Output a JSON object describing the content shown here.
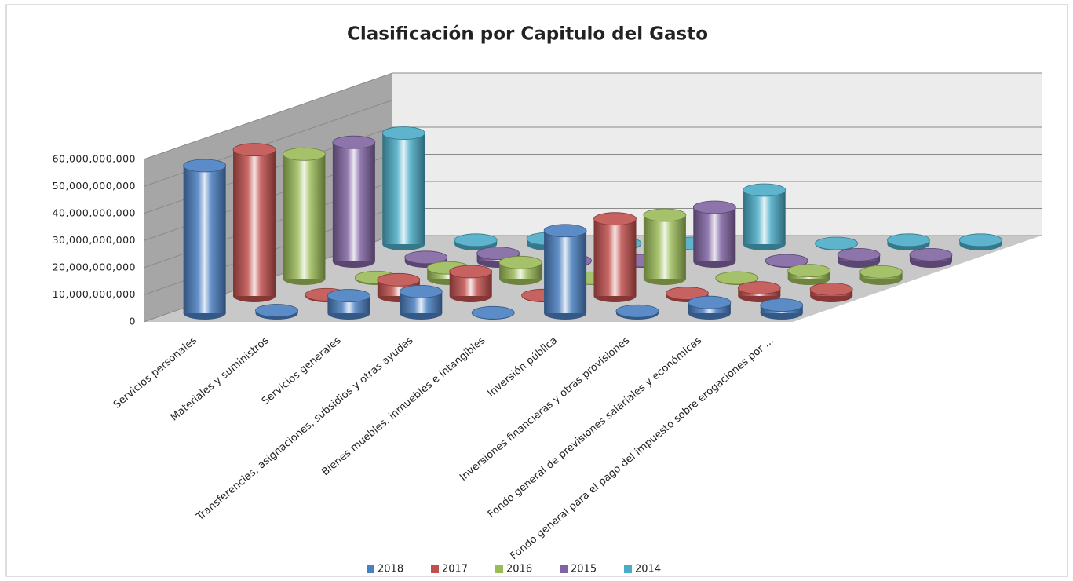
{
  "chart_data": {
    "type": "bar",
    "title": "Clasificación por Capitulo del Gasto",
    "categories": [
      "Servicios personales",
      "Materiales y suministros",
      "Servicios generales",
      "Transferencias, asignaciones, subsidios y otras ayudas",
      "Bienes muebles, inmuebles e intangibles",
      "Inversión pública",
      "Inversiones financieras y otras provisiones",
      "Fondo general de previsiones salariales y económicas",
      "Fondo general para el pago del impuesto sobre erogaciones por ..."
    ],
    "series": [
      {
        "name": "2018",
        "color": "#4a7fc1",
        "values": [
          54500000000,
          1000000000,
          6500000000,
          8000000000,
          200000000,
          30500000000,
          800000000,
          4000000000,
          3000000000
        ]
      },
      {
        "name": "2017",
        "color": "#c0504d",
        "values": [
          54000000000,
          500000000,
          6000000000,
          9000000000,
          200000000,
          28500000000,
          1000000000,
          3000000000,
          2500000000
        ]
      },
      {
        "name": "2016",
        "color": "#9bbb59",
        "values": [
          46000000000,
          500000000,
          4000000000,
          6000000000,
          200000000,
          23500000000,
          300000000,
          3000000000,
          2500000000
        ]
      },
      {
        "name": "2015",
        "color": "#8064a2",
        "values": [
          44000000000,
          1500000000,
          3000000000,
          300000000,
          300000000,
          20000000000,
          300000000,
          2500000000,
          2500000000
        ]
      },
      {
        "name": "2014",
        "color": "#4bacc6",
        "values": [
          41000000000,
          1500000000,
          2000000000,
          300000000,
          300000000,
          20000000000,
          300000000,
          1500000000,
          1500000000
        ]
      }
    ],
    "ylim": [
      0,
      60000000000
    ],
    "yticks": [
      {
        "value": 0,
        "label": "0"
      },
      {
        "value": 10000000000,
        "label": "10,000,000,000"
      },
      {
        "value": 20000000000,
        "label": "20,000,000,000"
      },
      {
        "value": 30000000000,
        "label": "30,000,000,000"
      },
      {
        "value": 40000000000,
        "label": "40,000,000,000"
      },
      {
        "value": 50000000000,
        "label": "50,000,000,000"
      },
      {
        "value": 60000000000,
        "label": "60,000,000,000"
      }
    ],
    "grid": true,
    "legend": "bottom"
  }
}
